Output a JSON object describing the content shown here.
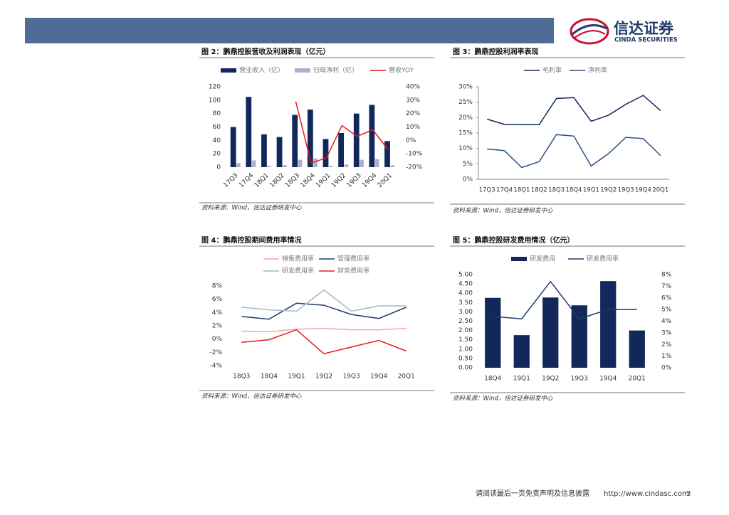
{
  "logo": {
    "cn": "信达证券",
    "en": "CINDA SECURITIES"
  },
  "chart_data": [
    {
      "type": "bar",
      "title": "图 2：鹏鼎控股营收及利润表现（亿元）",
      "source": "资料来源：Wind，信达证券研发中心",
      "categories": [
        "17Q3",
        "17Q4",
        "18Q1",
        "18Q2",
        "18Q3",
        "18Q4",
        "19Q1",
        "19Q2",
        "19Q3",
        "19Q4",
        "20Q1"
      ],
      "series": [
        {
          "name": "营业收入（亿）",
          "color": "#12285a",
          "values": [
            60,
            105,
            49,
            45,
            78,
            86,
            42,
            51,
            80,
            93,
            39
          ]
        },
        {
          "name": "归母净利（亿）",
          "color": "#a9b4c8",
          "values": [
            6,
            10,
            2,
            3,
            11,
            13,
            2,
            4,
            11,
            12,
            3
          ]
        },
        {
          "name": "营收YOY",
          "type": "line",
          "axis": "y2",
          "color": "#e8191e",
          "values": [
            null,
            null,
            null,
            null,
            29,
            -17,
            -13,
            11,
            3,
            8,
            -7
          ]
        }
      ],
      "ylim": [
        0,
        120
      ],
      "yticks": [
        0,
        20,
        40,
        60,
        80,
        100,
        120
      ],
      "y2lim": [
        -20,
        40
      ],
      "y2ticks": [
        {
          "value": -20,
          "label": "-20%"
        },
        {
          "value": -10,
          "label": "-10%"
        },
        {
          "value": 0,
          "label": "0%"
        },
        {
          "value": 10,
          "label": "10%"
        },
        {
          "value": 20,
          "label": "20%"
        },
        {
          "value": 30,
          "label": "30%"
        },
        {
          "value": 40,
          "label": "40%"
        }
      ]
    },
    {
      "type": "line",
      "title": "图 3：鹏鼎控股利润率表现",
      "source": "资料来源：Wind，信达证券研发中心",
      "categories": [
        "17Q3",
        "17Q4",
        "18Q1",
        "18Q2",
        "18Q3",
        "18Q4",
        "19Q1",
        "19Q2",
        "19Q3",
        "19Q4",
        "20Q1"
      ],
      "series": [
        {
          "name": "毛利率",
          "color": "#12285a",
          "values": [
            19.5,
            17.8,
            17.7,
            17.7,
            26.2,
            26.5,
            18.8,
            20.8,
            24.3,
            27.2,
            22.3
          ]
        },
        {
          "name": "净利率",
          "color": "#2c4f87",
          "values": [
            9.8,
            9.3,
            3.8,
            5.7,
            14.5,
            14.0,
            4.3,
            8.3,
            13.6,
            13.2,
            7.7
          ]
        }
      ],
      "ylim": [
        0,
        30
      ],
      "yticks": [
        {
          "value": 0,
          "label": "0%"
        },
        {
          "value": 5,
          "label": "5%"
        },
        {
          "value": 10,
          "label": "10%"
        },
        {
          "value": 15,
          "label": "15%"
        },
        {
          "value": 20,
          "label": "20%"
        },
        {
          "value": 25,
          "label": "25%"
        },
        {
          "value": 30,
          "label": "30%"
        }
      ]
    },
    {
      "type": "line",
      "title": "图 4：鹏鼎控股期间费用率情况",
      "source": "资料来源：Wind，信达证券研发中心",
      "categories": [
        "18Q3",
        "18Q4",
        "19Q1",
        "19Q2",
        "19Q3",
        "19Q4",
        "20Q1"
      ],
      "series": [
        {
          "name": "销售费用率",
          "color": "#f4a5a5",
          "values": [
            1.2,
            1.1,
            1.5,
            1.6,
            1.4,
            1.4,
            1.6
          ]
        },
        {
          "name": "管理费用率",
          "color": "#1f3a6b",
          "values": [
            3.4,
            3.0,
            5.4,
            5.1,
            3.7,
            3.1,
            4.8
          ]
        },
        {
          "name": "研发费用率",
          "color": "#aab6cc",
          "values": [
            4.8,
            4.4,
            4.2,
            7.4,
            4.2,
            5.0,
            5.0
          ]
        },
        {
          "name": "财务费用率",
          "color": "#e8191e",
          "values": [
            -0.5,
            -0.1,
            1.4,
            -2.2,
            -1.2,
            -0.2,
            -1.8
          ]
        }
      ],
      "ylim": [
        -4,
        8
      ],
      "yticks": [
        {
          "value": -4,
          "label": "-4%"
        },
        {
          "value": -2,
          "label": "-2%"
        },
        {
          "value": 0,
          "label": "0%"
        },
        {
          "value": 2,
          "label": "2%"
        },
        {
          "value": 4,
          "label": "4%"
        },
        {
          "value": 6,
          "label": "6%"
        },
        {
          "value": 8,
          "label": "8%"
        }
      ]
    },
    {
      "type": "bar",
      "title": "图 5：鹏鼎控股研发费用情况（亿元）",
      "source": "资料来源：Wind，信达证券研发中心",
      "categories": [
        "18Q4",
        "19Q1",
        "19Q2",
        "19Q3",
        "19Q4",
        "20Q1"
      ],
      "series": [
        {
          "name": "研发费用",
          "color": "#12285a",
          "values": [
            3.75,
            1.75,
            3.77,
            3.35,
            4.65,
            2.0
          ]
        },
        {
          "name": "研发费用率",
          "type": "line",
          "axis": "y2",
          "color": "#1f3a6b",
          "values": [
            4.4,
            4.2,
            7.4,
            4.2,
            5.0,
            5.0
          ]
        }
      ],
      "ylim": [
        0,
        5
      ],
      "yticks": [
        {
          "value": 0,
          "label": "0.00"
        },
        {
          "value": 0.5,
          "label": "0.50"
        },
        {
          "value": 1,
          "label": "1.00"
        },
        {
          "value": 1.5,
          "label": "1.50"
        },
        {
          "value": 2,
          "label": "2.00"
        },
        {
          "value": 2.5,
          "label": "2.50"
        },
        {
          "value": 3,
          "label": "3.00"
        },
        {
          "value": 3.5,
          "label": "3.50"
        },
        {
          "value": 4,
          "label": "4.00"
        },
        {
          "value": 4.5,
          "label": "4.50"
        },
        {
          "value": 5,
          "label": "5.00"
        }
      ],
      "y2lim": [
        0,
        8
      ],
      "y2ticks": [
        {
          "value": 0,
          "label": "0%"
        },
        {
          "value": 1,
          "label": "1%"
        },
        {
          "value": 2,
          "label": "2%"
        },
        {
          "value": 3,
          "label": "3%"
        },
        {
          "value": 4,
          "label": "4%"
        },
        {
          "value": 5,
          "label": "5%"
        },
        {
          "value": 6,
          "label": "6%"
        },
        {
          "value": 7,
          "label": "7%"
        },
        {
          "value": 8,
          "label": "8%"
        }
      ]
    }
  ],
  "footer": {
    "disclaimer": "请阅读最后一页免责声明及信息披露",
    "url": "http://www.cindasc.com",
    "page": "3"
  }
}
